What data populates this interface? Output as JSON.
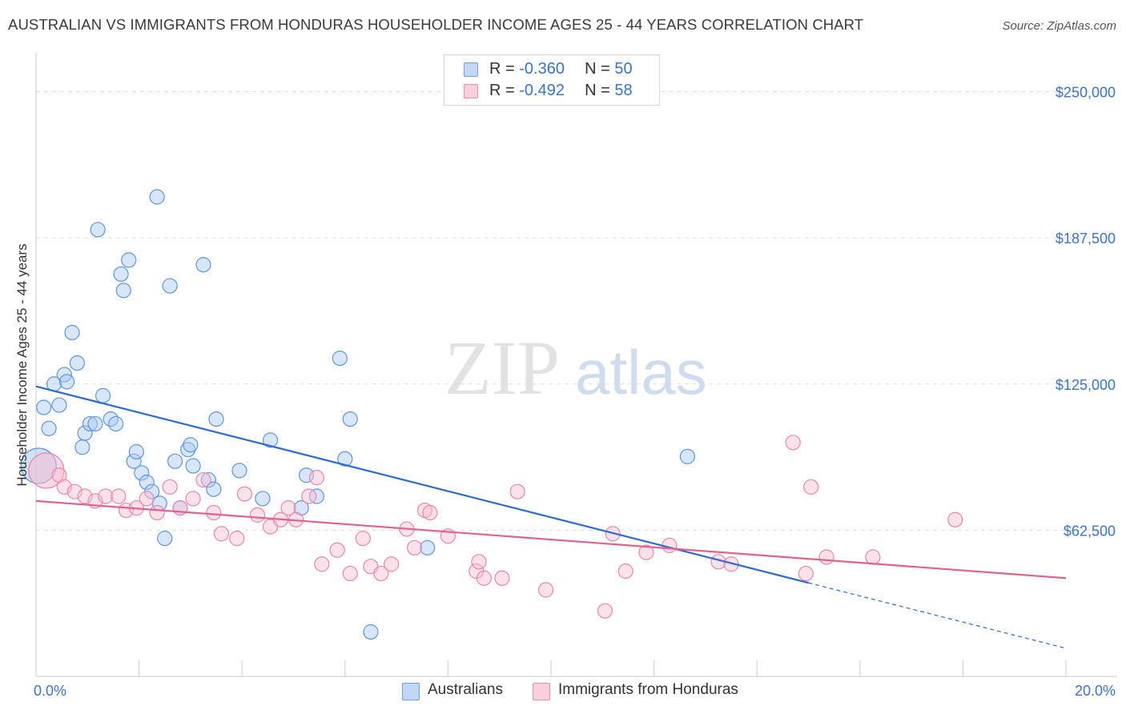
{
  "header": {
    "title": "AUSTRALIAN VS IMMIGRANTS FROM HONDURAS HOUSEHOLDER INCOME AGES 25 - 44 YEARS CORRELATION CHART",
    "source": "Source: ZipAtlas.com"
  },
  "watermark": {
    "zip": "ZIP",
    "atlas": "atlas"
  },
  "legend_top": {
    "r_label": "R =",
    "n_label": "N =",
    "rows": [
      {
        "r": "-0.360",
        "n": "50"
      },
      {
        "r": "-0.492",
        "n": "58"
      }
    ]
  },
  "chart_data": {
    "type": "scatter",
    "title": "AUSTRALIAN VS IMMIGRANTS FROM HONDURAS HOUSEHOLDER INCOME AGES 25 - 44 YEARS CORRELATION CHART",
    "xlabel": "",
    "ylabel": "Householder Income Ages 25 - 44 years",
    "xlim": [
      0,
      20
    ],
    "ylim": [
      0,
      262500
    ],
    "x_tick_labels": [
      "0.0%",
      "20.0%"
    ],
    "y_ticks": [
      62500,
      125000,
      187500,
      250000
    ],
    "y_tick_labels": [
      "$62,500",
      "$125,000",
      "$187,500",
      "$250,000"
    ],
    "grid": true,
    "legend_position": "bottom",
    "colors": {
      "australians": "#6fa1e8",
      "honduras": "#f08aae",
      "australians_line": "#2d6ccf",
      "honduras_line": "#e4608e",
      "tick_label": "#3b73c9"
    },
    "series": [
      {
        "name": "Australians",
        "r": -0.36,
        "n": 50,
        "trend": {
          "x0": 0,
          "y0": 124000,
          "x1": 15,
          "y1": 40000,
          "dash_to_x": 20,
          "dash_to_y": 12000
        },
        "points": [
          [
            0.05,
            90000,
            "large"
          ],
          [
            0.15,
            115000
          ],
          [
            0.25,
            106000
          ],
          [
            0.35,
            125000
          ],
          [
            0.45,
            116000
          ],
          [
            0.55,
            129000
          ],
          [
            0.6,
            126000
          ],
          [
            0.7,
            147000
          ],
          [
            0.8,
            134000
          ],
          [
            0.9,
            98000
          ],
          [
            0.95,
            104000
          ],
          [
            1.05,
            108000
          ],
          [
            1.15,
            108000
          ],
          [
            1.2,
            191000
          ],
          [
            1.3,
            120000
          ],
          [
            1.45,
            110000
          ],
          [
            1.55,
            108000
          ],
          [
            1.65,
            172000
          ],
          [
            1.7,
            165000
          ],
          [
            1.8,
            178000
          ],
          [
            1.9,
            92000
          ],
          [
            1.95,
            96000
          ],
          [
            2.05,
            87000
          ],
          [
            2.15,
            83000
          ],
          [
            2.25,
            79000
          ],
          [
            2.35,
            205000
          ],
          [
            2.4,
            74000
          ],
          [
            2.5,
            59000
          ],
          [
            2.6,
            167000
          ],
          [
            2.7,
            92000
          ],
          [
            2.8,
            72000
          ],
          [
            2.95,
            97000
          ],
          [
            3.0,
            99000
          ],
          [
            3.05,
            90000
          ],
          [
            3.25,
            176000
          ],
          [
            3.35,
            84000
          ],
          [
            3.45,
            80000
          ],
          [
            3.5,
            110000
          ],
          [
            3.95,
            88000
          ],
          [
            4.4,
            76000
          ],
          [
            4.55,
            101000
          ],
          [
            5.15,
            72000
          ],
          [
            5.25,
            86000
          ],
          [
            5.45,
            77000
          ],
          [
            5.9,
            136000
          ],
          [
            6.0,
            93000
          ],
          [
            6.1,
            110000
          ],
          [
            6.5,
            19000
          ],
          [
            7.6,
            55000
          ],
          [
            12.65,
            94000
          ]
        ]
      },
      {
        "name": "Immigrants from Honduras",
        "r": -0.492,
        "n": 58,
        "trend": {
          "x0": 0,
          "y0": 75000,
          "x1": 20,
          "y1": 42000
        },
        "points": [
          [
            0.2,
            88000,
            "large"
          ],
          [
            0.45,
            86000
          ],
          [
            0.55,
            81000
          ],
          [
            0.75,
            79000
          ],
          [
            0.95,
            77000
          ],
          [
            1.15,
            75000
          ],
          [
            1.35,
            77000
          ],
          [
            1.6,
            77000
          ],
          [
            1.75,
            71000
          ],
          [
            1.95,
            72000
          ],
          [
            2.15,
            76000
          ],
          [
            2.35,
            70000
          ],
          [
            2.6,
            81000
          ],
          [
            2.8,
            72000
          ],
          [
            3.05,
            76000
          ],
          [
            3.25,
            84000
          ],
          [
            3.45,
            70000
          ],
          [
            3.6,
            61000
          ],
          [
            3.9,
            59000
          ],
          [
            4.05,
            78000
          ],
          [
            4.3,
            69000
          ],
          [
            4.55,
            64000
          ],
          [
            4.75,
            67000
          ],
          [
            4.9,
            72000
          ],
          [
            5.05,
            67000
          ],
          [
            5.3,
            77000
          ],
          [
            5.45,
            85000
          ],
          [
            5.55,
            48000
          ],
          [
            5.85,
            54000
          ],
          [
            6.1,
            44000
          ],
          [
            6.35,
            59000
          ],
          [
            6.5,
            47000
          ],
          [
            6.7,
            44000
          ],
          [
            6.9,
            48000
          ],
          [
            7.2,
            63000
          ],
          [
            7.35,
            55000
          ],
          [
            7.55,
            71000
          ],
          [
            7.65,
            70000
          ],
          [
            8.0,
            60000
          ],
          [
            8.55,
            45000
          ],
          [
            8.6,
            49000
          ],
          [
            8.7,
            42000
          ],
          [
            9.05,
            42000
          ],
          [
            9.35,
            79000
          ],
          [
            9.9,
            37000
          ],
          [
            11.05,
            28000
          ],
          [
            11.2,
            61000
          ],
          [
            11.45,
            45000
          ],
          [
            11.85,
            53000
          ],
          [
            12.3,
            56000
          ],
          [
            13.25,
            49000
          ],
          [
            13.5,
            48000
          ],
          [
            14.7,
            100000
          ],
          [
            14.95,
            44000
          ],
          [
            15.05,
            81000
          ],
          [
            15.35,
            51000
          ],
          [
            16.25,
            51000
          ],
          [
            17.85,
            67000
          ]
        ]
      }
    ]
  }
}
